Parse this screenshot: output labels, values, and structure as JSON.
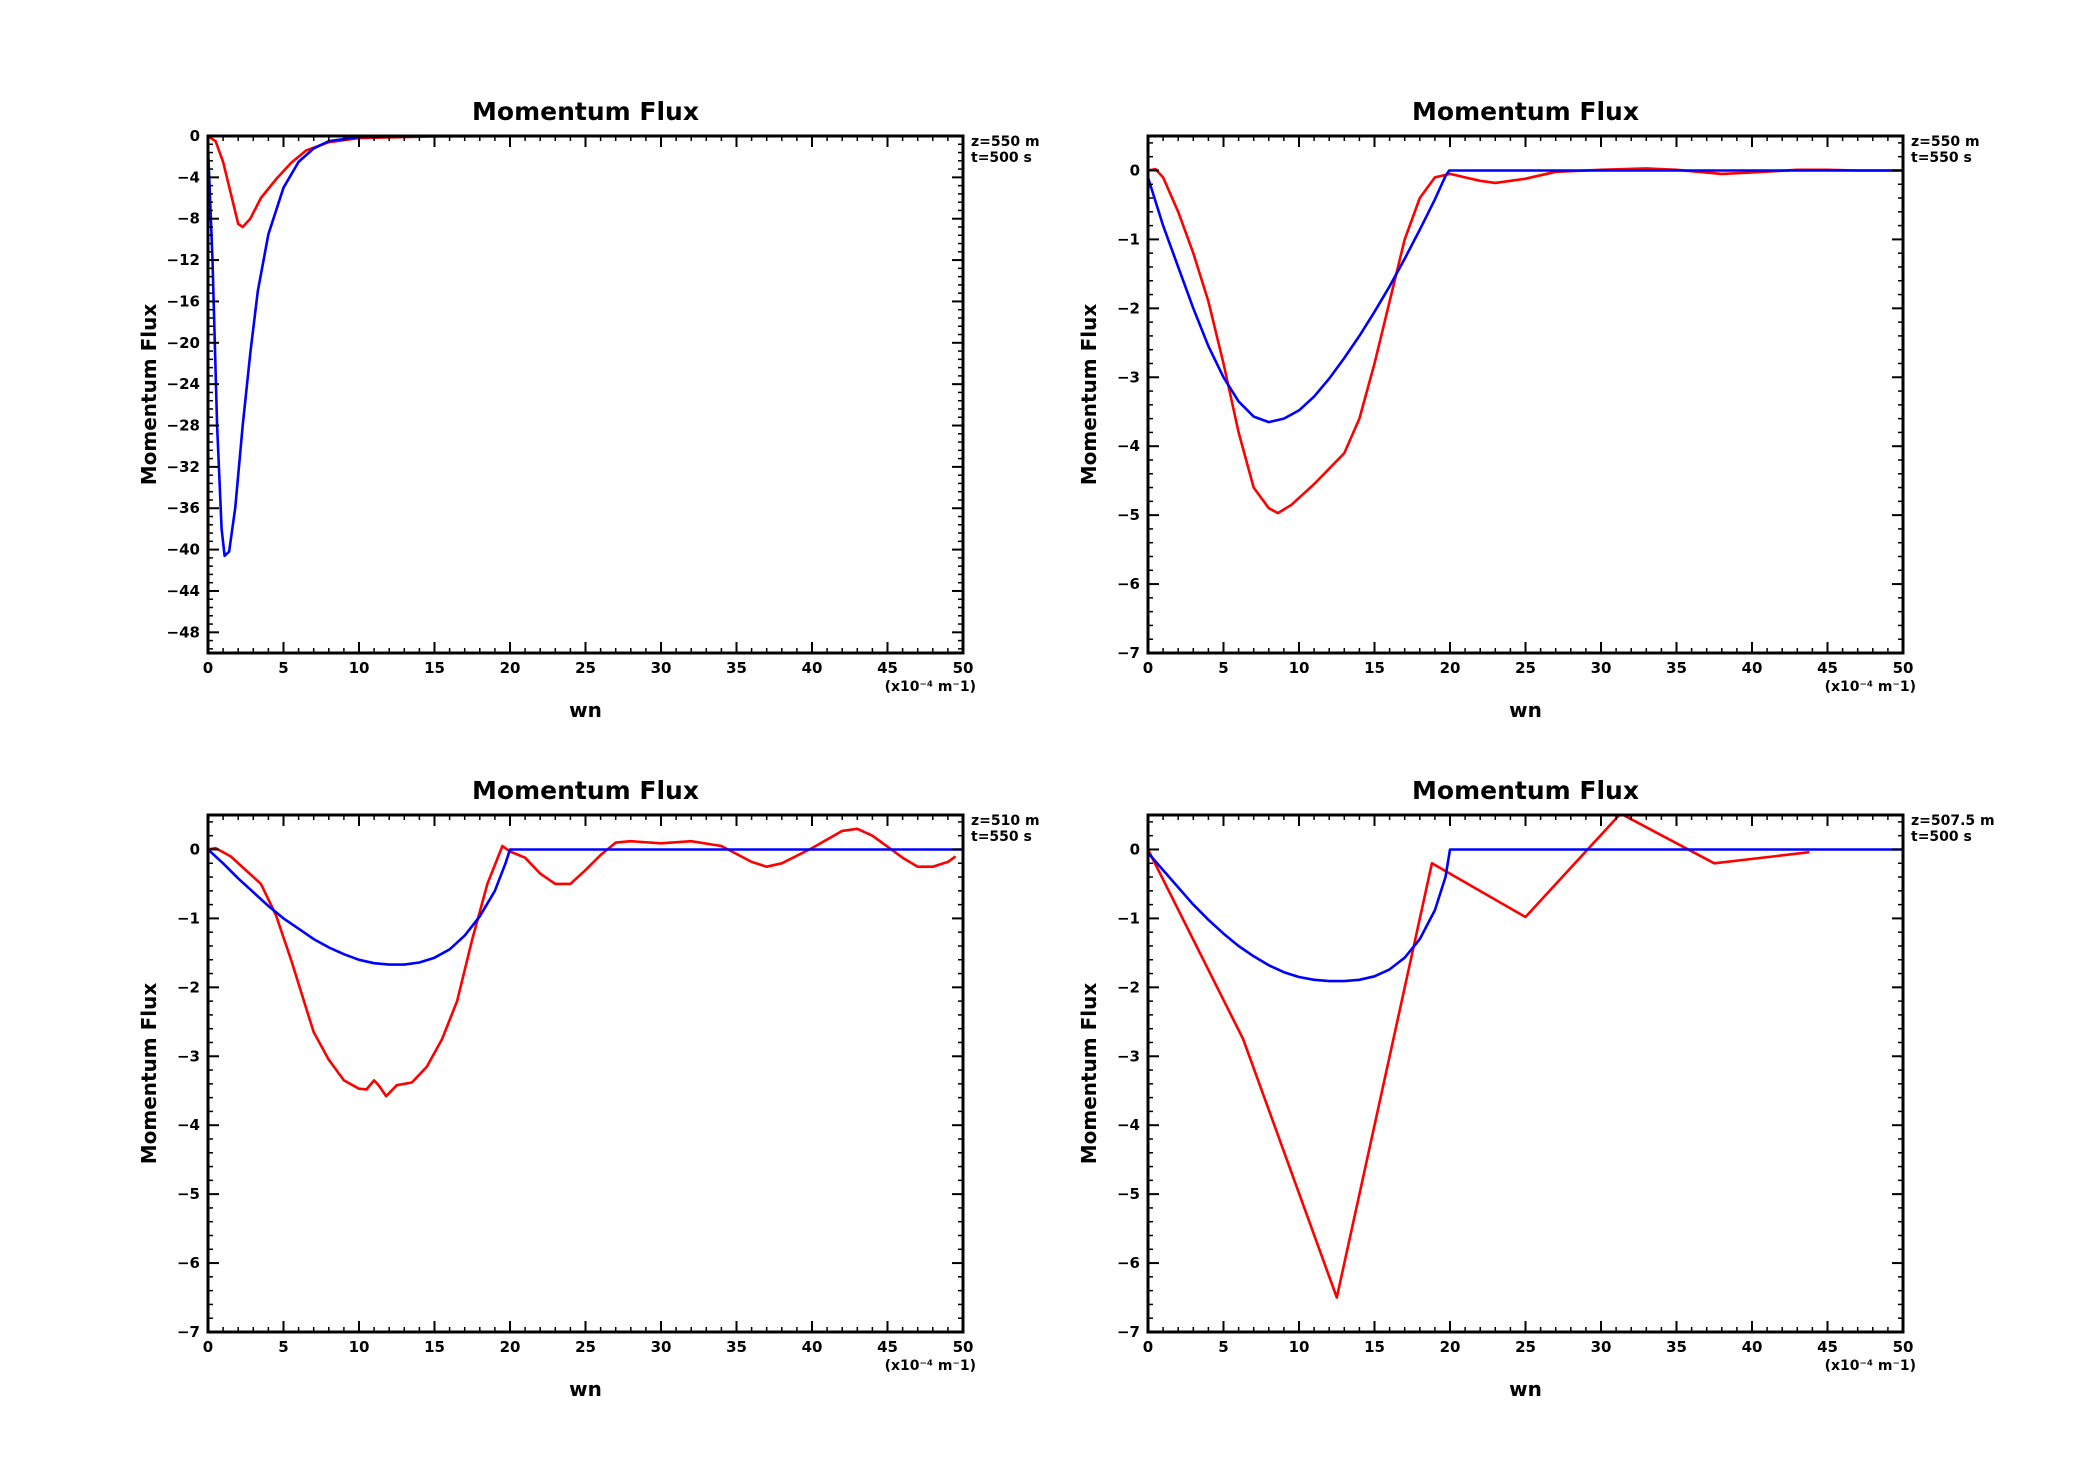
{
  "chart_data": [
    {
      "type": "line",
      "title": "Momentum Flux",
      "xlabel": "wn",
      "ylabel": "Momentum Flux",
      "x_unit_label": "(x10⁻⁴ m⁻1)",
      "info_lines": [
        "z=550  m",
        "t=500  s"
      ],
      "xlim": [
        0,
        50
      ],
      "ylim": [
        -50,
        0
      ],
      "xticks": [
        0,
        5,
        10,
        15,
        20,
        25,
        30,
        35,
        40,
        45,
        50
      ],
      "yticks": [
        0,
        -4,
        -8,
        -12,
        -16,
        -20,
        -24,
        -28,
        -32,
        -36,
        -40,
        -44,
        -48
      ],
      "grid": false,
      "series": [
        {
          "color": "#ff0000",
          "points": [
            [
              0,
              0
            ],
            [
              0.5,
              -0.5
            ],
            [
              1,
              -2.5
            ],
            [
              1.5,
              -5.5
            ],
            [
              2,
              -8.5
            ],
            [
              2.3,
              -8.8
            ],
            [
              2.8,
              -8
            ],
            [
              3.5,
              -6
            ],
            [
              4.5,
              -4.2
            ],
            [
              5.5,
              -2.6
            ],
            [
              6.5,
              -1.4
            ],
            [
              8,
              -0.6
            ],
            [
              10,
              -0.2
            ],
            [
              15,
              -0.05
            ],
            [
              25,
              0
            ],
            [
              50,
              0
            ]
          ]
        },
        {
          "color": "#0000ff",
          "points": [
            [
              0,
              -1
            ],
            [
              0.3,
              -12
            ],
            [
              0.6,
              -28
            ],
            [
              0.9,
              -38
            ],
            [
              1.1,
              -40.6
            ],
            [
              1.4,
              -40.2
            ],
            [
              1.8,
              -36
            ],
            [
              2.3,
              -28
            ],
            [
              2.8,
              -21
            ],
            [
              3.3,
              -15
            ],
            [
              4,
              -9.5
            ],
            [
              5,
              -5
            ],
            [
              6,
              -2.5
            ],
            [
              7,
              -1.2
            ],
            [
              8,
              -0.5
            ],
            [
              10,
              -0.1
            ],
            [
              15,
              0
            ],
            [
              50,
              0
            ]
          ]
        }
      ]
    },
    {
      "type": "line",
      "title": "Momentum Flux",
      "xlabel": "wn",
      "ylabel": "Momentum Flux",
      "x_unit_label": "(x10⁻⁴ m⁻1)",
      "info_lines": [
        "z=550  m",
        "t=550  s"
      ],
      "xlim": [
        0,
        50
      ],
      "ylim": [
        -7,
        0.5
      ],
      "xticks": [
        0,
        5,
        10,
        15,
        20,
        25,
        30,
        35,
        40,
        45,
        50
      ],
      "yticks": [
        0,
        -1,
        -2,
        -3,
        -4,
        -5,
        -6,
        -7
      ],
      "grid": false,
      "series": [
        {
          "color": "#ff0000",
          "points": [
            [
              0,
              0
            ],
            [
              0.5,
              0.02
            ],
            [
              1,
              -0.1
            ],
            [
              2,
              -0.6
            ],
            [
              3,
              -1.2
            ],
            [
              4,
              -1.9
            ],
            [
              5,
              -2.8
            ],
            [
              6,
              -3.8
            ],
            [
              7,
              -4.6
            ],
            [
              8,
              -4.9
            ],
            [
              8.6,
              -4.97
            ],
            [
              9.5,
              -4.85
            ],
            [
              11,
              -4.55
            ],
            [
              13,
              -4.1
            ],
            [
              14,
              -3.6
            ],
            [
              15,
              -2.8
            ],
            [
              16,
              -1.9
            ],
            [
              17,
              -1.0
            ],
            [
              18,
              -0.4
            ],
            [
              19,
              -0.1
            ],
            [
              20,
              -0.05
            ],
            [
              21,
              -0.1
            ],
            [
              22,
              -0.15
            ],
            [
              23,
              -0.18
            ],
            [
              25,
              -0.12
            ],
            [
              27,
              -0.02
            ],
            [
              30,
              0.01
            ],
            [
              33,
              0.03
            ],
            [
              35,
              0.01
            ],
            [
              38,
              -0.05
            ],
            [
              40,
              -0.03
            ],
            [
              43,
              0.01
            ],
            [
              45,
              0.01
            ],
            [
              47,
              0
            ],
            [
              50,
              0
            ]
          ]
        },
        {
          "color": "#0000ff",
          "points": [
            [
              0,
              -0.1
            ],
            [
              1,
              -0.8
            ],
            [
              2,
              -1.4
            ],
            [
              3,
              -2.0
            ],
            [
              4,
              -2.55
            ],
            [
              5,
              -3.0
            ],
            [
              6,
              -3.35
            ],
            [
              7,
              -3.57
            ],
            [
              8,
              -3.65
            ],
            [
              9,
              -3.6
            ],
            [
              10,
              -3.48
            ],
            [
              11,
              -3.28
            ],
            [
              12,
              -3.02
            ],
            [
              13,
              -2.72
            ],
            [
              14,
              -2.4
            ],
            [
              15,
              -2.05
            ],
            [
              16,
              -1.68
            ],
            [
              17,
              -1.28
            ],
            [
              18,
              -0.86
            ],
            [
              19,
              -0.42
            ],
            [
              19.7,
              -0.08
            ],
            [
              19.95,
              0
            ],
            [
              20,
              0
            ],
            [
              50,
              0
            ]
          ]
        }
      ]
    },
    {
      "type": "line",
      "title": "Momentum Flux",
      "xlabel": "wn",
      "ylabel": "Momentum Flux",
      "x_unit_label": "(x10⁻⁴ m⁻1)",
      "info_lines": [
        "z=510  m",
        "t=550  s"
      ],
      "xlim": [
        0,
        50
      ],
      "ylim": [
        -7,
        0.5
      ],
      "xticks": [
        0,
        5,
        10,
        15,
        20,
        25,
        30,
        35,
        40,
        45,
        50
      ],
      "yticks": [
        0,
        -1,
        -2,
        -3,
        -4,
        -5,
        -6,
        -7
      ],
      "grid": false,
      "series": [
        {
          "color": "#ff0000",
          "points": [
            [
              0,
              0
            ],
            [
              0.5,
              0.02
            ],
            [
              1.5,
              -0.1
            ],
            [
              2.5,
              -0.3
            ],
            [
              3.5,
              -0.5
            ],
            [
              4.5,
              -0.95
            ],
            [
              5.5,
              -1.6
            ],
            [
              6.5,
              -2.3
            ],
            [
              7,
              -2.65
            ],
            [
              8,
              -3.05
            ],
            [
              9,
              -3.35
            ],
            [
              10,
              -3.47
            ],
            [
              10.5,
              -3.48
            ],
            [
              11,
              -3.35
            ],
            [
              11.3,
              -3.42
            ],
            [
              11.8,
              -3.58
            ],
            [
              12.5,
              -3.42
            ],
            [
              13.5,
              -3.38
            ],
            [
              14.5,
              -3.15
            ],
            [
              15.5,
              -2.75
            ],
            [
              16.5,
              -2.2
            ],
            [
              17.5,
              -1.3
            ],
            [
              18.5,
              -0.5
            ],
            [
              19.5,
              0.05
            ],
            [
              20,
              -0.03
            ],
            [
              21,
              -0.12
            ],
            [
              22,
              -0.35
            ],
            [
              23,
              -0.5
            ],
            [
              24,
              -0.5
            ],
            [
              25,
              -0.3
            ],
            [
              26,
              -0.08
            ],
            [
              27,
              0.1
            ],
            [
              28,
              0.12
            ],
            [
              30,
              0.09
            ],
            [
              32,
              0.12
            ],
            [
              34,
              0.05
            ],
            [
              36,
              -0.18
            ],
            [
              37,
              -0.25
            ],
            [
              38,
              -0.2
            ],
            [
              40,
              0.02
            ],
            [
              42,
              0.27
            ],
            [
              43,
              0.3
            ],
            [
              44,
              0.2
            ],
            [
              46,
              -0.12
            ],
            [
              47,
              -0.25
            ],
            [
              48,
              -0.25
            ],
            [
              49,
              -0.18
            ],
            [
              49.5,
              -0.1
            ]
          ]
        },
        {
          "color": "#0000ff",
          "points": [
            [
              0,
              0
            ],
            [
              1,
              -0.2
            ],
            [
              2,
              -0.42
            ],
            [
              3,
              -0.62
            ],
            [
              4,
              -0.82
            ],
            [
              5,
              -1.0
            ],
            [
              6,
              -1.15
            ],
            [
              7,
              -1.3
            ],
            [
              8,
              -1.42
            ],
            [
              9,
              -1.52
            ],
            [
              10,
              -1.6
            ],
            [
              11,
              -1.65
            ],
            [
              12,
              -1.67
            ],
            [
              13,
              -1.67
            ],
            [
              14,
              -1.64
            ],
            [
              15,
              -1.57
            ],
            [
              16,
              -1.45
            ],
            [
              17,
              -1.25
            ],
            [
              18,
              -0.97
            ],
            [
              19,
              -0.6
            ],
            [
              19.7,
              -0.2
            ],
            [
              20,
              0
            ],
            [
              50,
              0
            ]
          ]
        }
      ]
    },
    {
      "type": "line",
      "title": "Momentum Flux",
      "xlabel": "wn",
      "ylabel": "Momentum Flux",
      "x_unit_label": "(x10⁻⁴ m⁻1)",
      "info_lines": [
        "z=507.5  m",
        "t=500  s"
      ],
      "xlim": [
        0,
        50
      ],
      "ylim": [
        -7,
        0.5
      ],
      "xticks": [
        0,
        5,
        10,
        15,
        20,
        25,
        30,
        35,
        40,
        45,
        50
      ],
      "yticks": [
        0,
        -1,
        -2,
        -3,
        -4,
        -5,
        -6,
        -7
      ],
      "grid": false,
      "series": [
        {
          "color": "#ff0000",
          "points": [
            [
              0,
              0
            ],
            [
              6.3,
              -2.75
            ],
            [
              12.5,
              -6.5
            ],
            [
              18.8,
              -0.2
            ],
            [
              25,
              -0.98
            ],
            [
              31.3,
              0.52
            ],
            [
              37.5,
              -0.2
            ],
            [
              43.8,
              -0.04
            ]
          ]
        },
        {
          "color": "#0000ff",
          "points": [
            [
              0,
              -0.05
            ],
            [
              1,
              -0.3
            ],
            [
              2,
              -0.55
            ],
            [
              3,
              -0.8
            ],
            [
              4,
              -1.02
            ],
            [
              5,
              -1.22
            ],
            [
              6,
              -1.4
            ],
            [
              7,
              -1.55
            ],
            [
              8,
              -1.68
            ],
            [
              9,
              -1.78
            ],
            [
              10,
              -1.85
            ],
            [
              11,
              -1.89
            ],
            [
              12,
              -1.91
            ],
            [
              13,
              -1.91
            ],
            [
              14,
              -1.89
            ],
            [
              15,
              -1.84
            ],
            [
              16,
              -1.74
            ],
            [
              17,
              -1.57
            ],
            [
              18,
              -1.3
            ],
            [
              19,
              -0.88
            ],
            [
              19.7,
              -0.4
            ],
            [
              20,
              0
            ],
            [
              50,
              0
            ]
          ]
        }
      ]
    }
  ]
}
